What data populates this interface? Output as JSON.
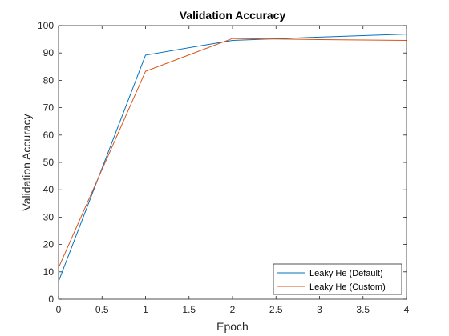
{
  "chart_data": {
    "type": "line",
    "title": "Validation Accuracy",
    "xlabel": "Epoch",
    "ylabel": "Validation Accuracy",
    "xlim": [
      0,
      4
    ],
    "ylim": [
      0,
      100
    ],
    "xticks": [
      0,
      0.5,
      1,
      1.5,
      2,
      2.5,
      3,
      3.5,
      4
    ],
    "xtick_labels": [
      "0",
      "0.5",
      "1",
      "1.5",
      "2",
      "2.5",
      "3",
      "3.5",
      "4"
    ],
    "yticks": [
      0,
      10,
      20,
      30,
      40,
      50,
      60,
      70,
      80,
      90,
      100
    ],
    "ytick_labels": [
      "0",
      "10",
      "20",
      "30",
      "40",
      "50",
      "60",
      "70",
      "80",
      "90",
      "100"
    ],
    "grid": false,
    "legend_position": "bottom-right",
    "series": [
      {
        "name": "Leaky He (Default)",
        "color": "#0072BD",
        "x": [
          0,
          1,
          2,
          3,
          4
        ],
        "y": [
          6.5,
          89.2,
          94.6,
          95.8,
          96.9
        ]
      },
      {
        "name": "Leaky He (Custom)",
        "color": "#D95319",
        "x": [
          0,
          1,
          2,
          3,
          4
        ],
        "y": [
          11.5,
          83.3,
          95.3,
          94.9,
          94.6
        ]
      }
    ]
  }
}
